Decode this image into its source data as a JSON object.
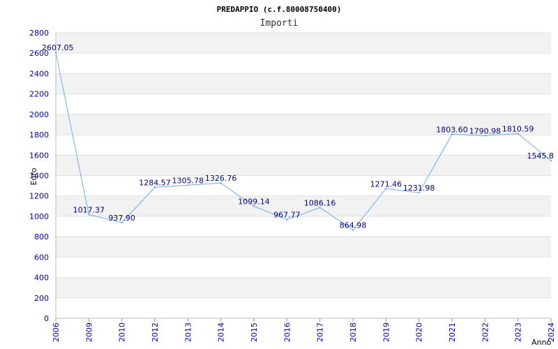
{
  "chart_data": {
    "type": "line",
    "title": "PREDAPPIO (c.f.80008750400)",
    "subtitle": "Importi",
    "xlabel": "Anno",
    "ylabel": "Euro",
    "ylim": [
      0,
      2800
    ],
    "yticks": [
      "0",
      "200",
      "400",
      "600",
      "800",
      "1000",
      "1200",
      "1400",
      "1600",
      "1800",
      "2000",
      "2200",
      "2400",
      "2600",
      "2800"
    ],
    "categories": [
      "2006",
      "2009",
      "2010",
      "2012",
      "2013",
      "2014",
      "2015",
      "2016",
      "2017",
      "2018",
      "2019",
      "2020",
      "2021",
      "2022",
      "2023",
      "2024"
    ],
    "values": [
      2607.05,
      1017.37,
      937.9,
      1284.57,
      1305.78,
      1326.76,
      1099.14,
      967.77,
      1086.16,
      864.98,
      1271.46,
      1231.98,
      1803.6,
      1790.98,
      1810.59,
      1545.8
    ],
    "value_labels": [
      "2607.05",
      "1017.37",
      "937.90",
      "1284.57",
      "1305.78",
      "1326.76",
      "1099.14",
      "967.77",
      "1086.16",
      "864.98",
      "1271.46",
      "1231.98",
      "1803.60",
      "1790.98",
      "1810.59",
      "1545.8"
    ],
    "grid": true,
    "line_color": "#6aaee8",
    "band_color": "#f2f2f2",
    "tick_color": "#0000aa",
    "label_color": "#000080"
  }
}
